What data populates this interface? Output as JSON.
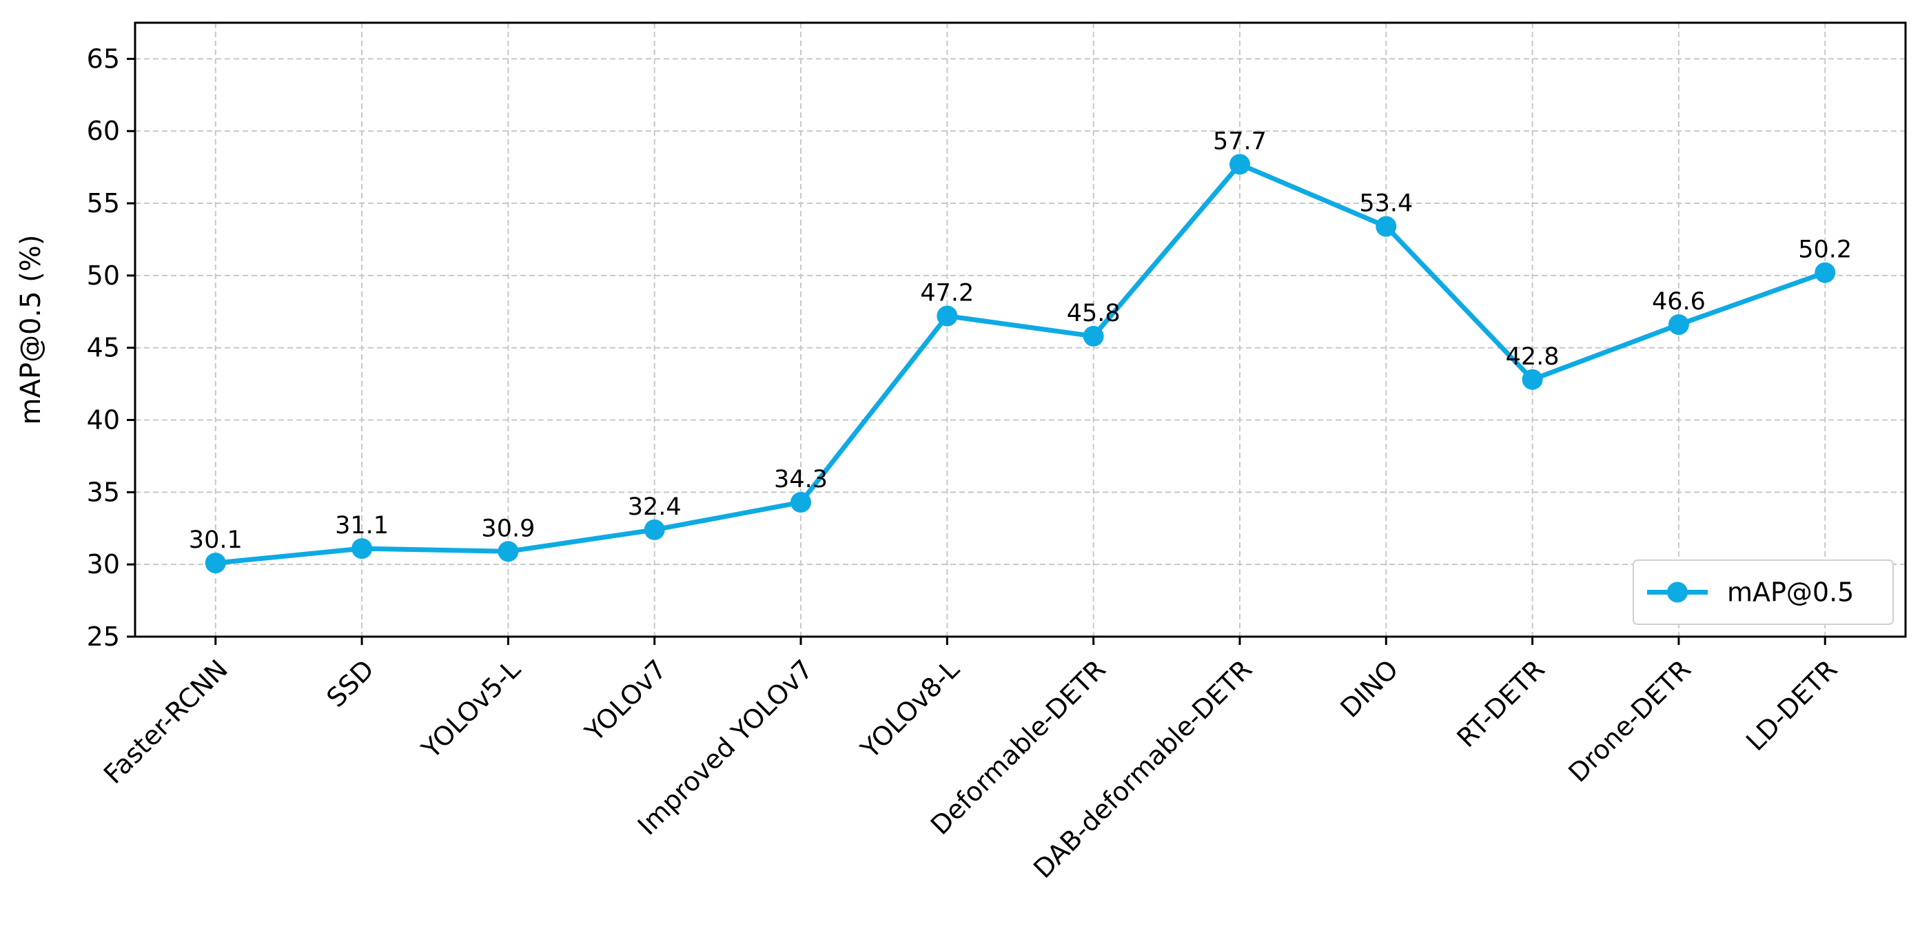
{
  "chart_data": {
    "type": "line",
    "title": "",
    "xlabel": "",
    "ylabel": "mAP@0.5 (%)",
    "ylim": [
      25,
      67.5
    ],
    "yticks": [
      25,
      30,
      35,
      40,
      45,
      50,
      55,
      60,
      65
    ],
    "grid": true,
    "legend_position": "lower-right",
    "categories": [
      "Faster-RCNN",
      "SSD",
      "YOLOv5-L",
      "YOLOv7",
      "Improved YOLOv7",
      "YOLOv8-L",
      "Deformable-DETR",
      "DAB-deformable-DETR",
      "DINO",
      "RT-DETR",
      "Drone-DETR",
      "LD-DETR"
    ],
    "series": [
      {
        "name": "mAP@0.5",
        "color": "#0eaae3",
        "values": [
          30.1,
          31.1,
          30.9,
          32.4,
          34.3,
          47.2,
          45.8,
          57.7,
          53.4,
          42.8,
          46.6,
          50.2
        ],
        "labels": [
          "30.1",
          "31.1",
          "30.9",
          "32.4",
          "34.3",
          "47.2",
          "45.8",
          "57.7",
          "53.4",
          "42.8",
          "46.6",
          "50.2"
        ]
      }
    ]
  }
}
